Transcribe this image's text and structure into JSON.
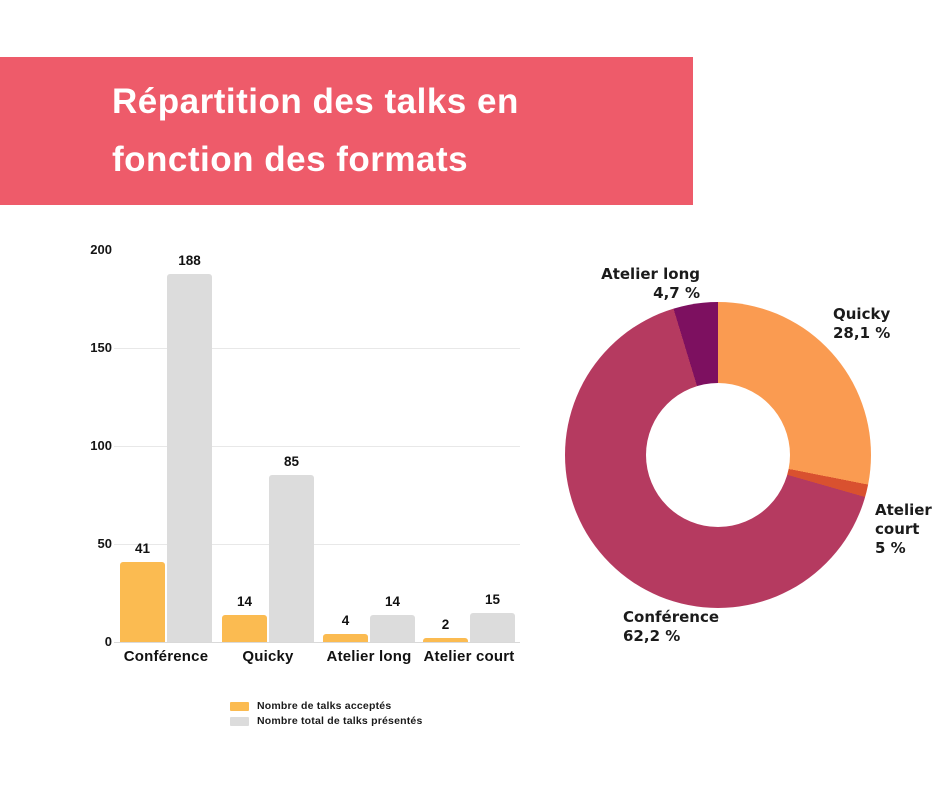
{
  "title": {
    "line1": "Répartition des talks en",
    "line2": "fonction des formats"
  },
  "colors": {
    "banner": "#ee5b6a",
    "accepted_bar": "#fbbb51",
    "total_bar": "#dcdcdc",
    "text": "#151515",
    "gridline": "#e8e8e8",
    "donut_quicky": "#fa9b51",
    "donut_atelier_court": "#d9512f",
    "donut_conference": "#b53a60",
    "donut_atelier_long": "#7d1060"
  },
  "legend": {
    "items": [
      {
        "label": "Nombre de talks acceptés",
        "color": "#fbbb51"
      },
      {
        "label": "Nombre total de talks présentés",
        "color": "#dcdcdc"
      }
    ]
  },
  "chart_data": [
    {
      "type": "bar",
      "title": "",
      "categories": [
        "Conférence",
        "Quicky",
        "Atelier long",
        "Atelier court"
      ],
      "series": [
        {
          "name": "Nombre de talks acceptés",
          "color": "#fbbb51",
          "values": [
            41,
            14,
            4,
            2
          ]
        },
        {
          "name": "Nombre total de talks présentés",
          "color": "#dcdcdc",
          "values": [
            188,
            85,
            14,
            15
          ]
        }
      ],
      "ylim": [
        0,
        200
      ],
      "yticks": [
        200,
        150,
        100,
        50,
        0
      ],
      "grid": true,
      "legend_position": "bottom"
    },
    {
      "type": "pie",
      "donut": true,
      "start": "top",
      "direction": "clockwise",
      "segments": [
        {
          "label": "Quicky",
          "pct_label": "28,1 %",
          "value": 28.1,
          "color": "#fa9b51"
        },
        {
          "label": "Atelier court",
          "pct_label": "5 %",
          "value": 5,
          "color": "#d9512f"
        },
        {
          "label": "Conférence",
          "pct_label": "62,2 %",
          "value": 62.2,
          "color": "#b53a60"
        },
        {
          "label": "Atelier long",
          "pct_label": "4,7 %",
          "value": 4.7,
          "color": "#7d1060"
        }
      ]
    }
  ]
}
